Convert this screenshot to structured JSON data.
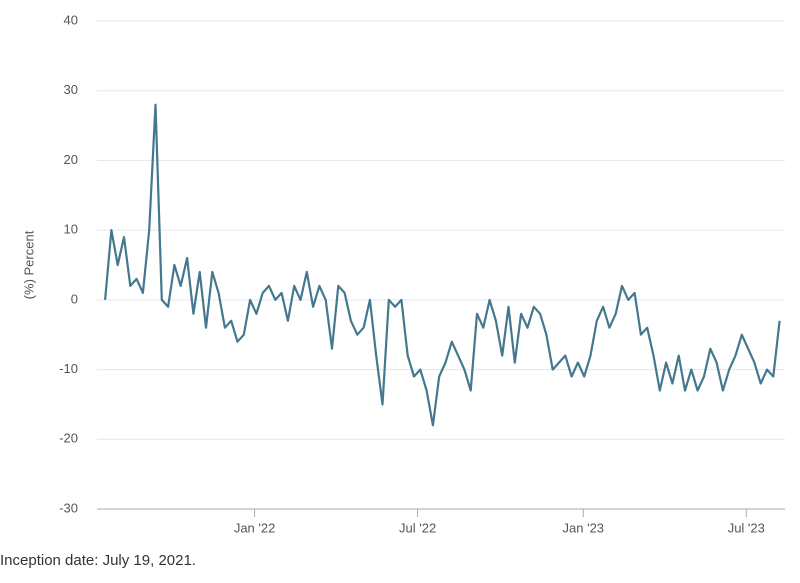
{
  "chart_data": {
    "type": "line",
    "y_label": "(%) Percent",
    "note": "Inception date: July 19, 2021.",
    "x": [
      "2021-07-19",
      "2021-07-26",
      "2021-08-02",
      "2021-08-09",
      "2021-08-16",
      "2021-08-23",
      "2021-08-30",
      "2021-09-06",
      "2021-09-13",
      "2021-09-20",
      "2021-09-27",
      "2021-10-04",
      "2021-10-11",
      "2021-10-18",
      "2021-10-25",
      "2021-11-01",
      "2021-11-08",
      "2021-11-15",
      "2021-11-22",
      "2021-11-29",
      "2021-12-06",
      "2021-12-13",
      "2021-12-20",
      "2021-12-27",
      "2022-01-03",
      "2022-01-10",
      "2022-01-17",
      "2022-01-24",
      "2022-01-31",
      "2022-02-07",
      "2022-02-14",
      "2022-02-21",
      "2022-02-28",
      "2022-03-07",
      "2022-03-14",
      "2022-03-21",
      "2022-03-28",
      "2022-04-04",
      "2022-04-11",
      "2022-04-18",
      "2022-04-25",
      "2022-05-02",
      "2022-05-09",
      "2022-05-16",
      "2022-05-23",
      "2022-05-30",
      "2022-06-06",
      "2022-06-13",
      "2022-06-20",
      "2022-06-27",
      "2022-07-04",
      "2022-07-11",
      "2022-07-18",
      "2022-07-25",
      "2022-08-01",
      "2022-08-08",
      "2022-08-15",
      "2022-08-22",
      "2022-08-29",
      "2022-09-05",
      "2022-09-12",
      "2022-09-19",
      "2022-09-26",
      "2022-10-03",
      "2022-10-10",
      "2022-10-17",
      "2022-10-24",
      "2022-10-31",
      "2022-11-07",
      "2022-11-14",
      "2022-11-21",
      "2022-11-28",
      "2022-12-05",
      "2022-12-12",
      "2022-12-19",
      "2022-12-26",
      "2023-01-02",
      "2023-01-09",
      "2023-01-16",
      "2023-01-23",
      "2023-01-30",
      "2023-02-06",
      "2023-02-13",
      "2023-02-20",
      "2023-02-27",
      "2023-03-06",
      "2023-03-13",
      "2023-03-20",
      "2023-03-27",
      "2023-04-03",
      "2023-04-10",
      "2023-04-17",
      "2023-04-24",
      "2023-05-01",
      "2023-05-08",
      "2023-05-15",
      "2023-05-22",
      "2023-05-29",
      "2023-06-05",
      "2023-06-12",
      "2023-06-19",
      "2023-06-26",
      "2023-07-03",
      "2023-07-10",
      "2023-07-17",
      "2023-07-24",
      "2023-07-31",
      "2023-08-07"
    ],
    "series": [
      {
        "name": "Percent",
        "color": "#44788f",
        "values": [
          0,
          10,
          5,
          9,
          2,
          3,
          1,
          10,
          28,
          0,
          -1,
          5,
          2,
          6,
          -2,
          4,
          -4,
          4,
          1,
          -4,
          -3,
          -6,
          -5,
          0,
          -2,
          1,
          2,
          0,
          1,
          -3,
          2,
          0,
          4,
          -1,
          2,
          0,
          -7,
          2,
          1,
          -3,
          -5,
          -4,
          0,
          -8,
          -15,
          0,
          -1,
          0,
          -8,
          -11,
          -10,
          -13,
          -18,
          -11,
          -9,
          -6,
          -8,
          -10,
          -13,
          -2,
          -4,
          0,
          -3,
          -8,
          -1,
          -9,
          -2,
          -4,
          -1,
          -2,
          -5,
          -10,
          -9,
          -8,
          -11,
          -9,
          -11,
          -8,
          -3,
          -1,
          -4,
          -2,
          2,
          0,
          1,
          -5,
          -4,
          -8,
          -13,
          -9,
          -12,
          -8,
          -13,
          -10,
          -13,
          -11,
          -7,
          -9,
          -13,
          -10,
          -8,
          -5,
          -7,
          -9,
          -12,
          -10,
          -11,
          -3
        ]
      }
    ],
    "xlim": [
      "2021-07-10",
      "2023-08-13"
    ],
    "xticks": [
      {
        "value": "2022-01-01",
        "label": "Jan '22"
      },
      {
        "value": "2022-07-01",
        "label": "Jul '22"
      },
      {
        "value": "2023-01-01",
        "label": "Jan '23"
      },
      {
        "value": "2023-07-01",
        "label": "Jul '23"
      }
    ],
    "ylim": [
      -30,
      40
    ],
    "yticks": [
      -30,
      -20,
      -10,
      0,
      10,
      20,
      30,
      40
    ],
    "grid": true
  }
}
